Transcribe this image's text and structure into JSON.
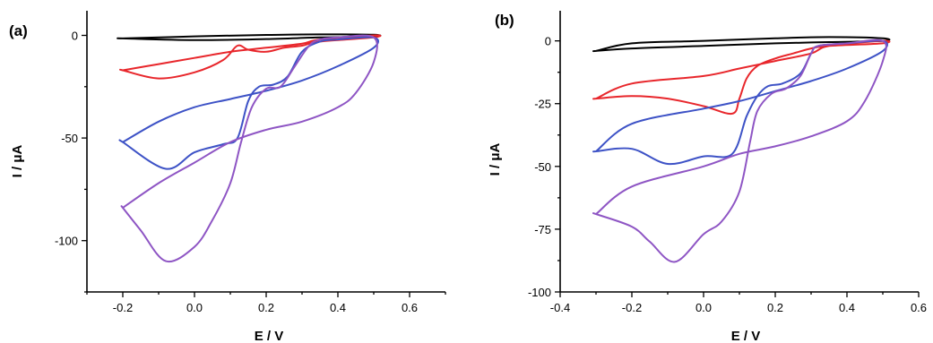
{
  "chart_data": [
    {
      "panel_label": "(a)",
      "type": "line",
      "xlabel": "E / V",
      "ylabel": "I / μA",
      "xlim": [
        -0.3,
        0.7
      ],
      "ylim": [
        -125,
        12
      ],
      "xticks": [
        -0.2,
        0.0,
        0.2,
        0.4,
        0.6
      ],
      "yticks": [
        0,
        -50,
        -100
      ],
      "grid": false,
      "legend": "none",
      "series": [
        {
          "color": "#000000",
          "x": [
            -0.2,
            0.0,
            0.2,
            0.35,
            0.5,
            0.5,
            0.35,
            0.2,
            0.0,
            -0.2
          ],
          "y": [
            -1.5,
            -0.5,
            0.2,
            0.5,
            0.3,
            -0.5,
            -1.0,
            -1.8,
            -2.3,
            -1.5
          ]
        },
        {
          "color": "#e8262b",
          "x": [
            -0.2,
            -0.1,
            0.0,
            0.1,
            0.2,
            0.3,
            0.35,
            0.5,
            0.5,
            0.35,
            0.3,
            0.25,
            0.2,
            0.15,
            0.12,
            0.08,
            0.0,
            -0.1,
            -0.2
          ],
          "y": [
            -17,
            -14,
            -11,
            -8,
            -6,
            -4,
            -2,
            0,
            -1,
            -3,
            -5,
            -6,
            -8,
            -7,
            -5,
            -12,
            -18,
            -21,
            -17
          ]
        },
        {
          "color": "#3d52c6",
          "x": [
            -0.2,
            -0.1,
            0.0,
            0.1,
            0.2,
            0.3,
            0.4,
            0.5,
            0.5,
            0.4,
            0.35,
            0.3,
            0.26,
            0.22,
            0.18,
            0.15,
            0.12,
            0.08,
            0.0,
            -0.08,
            -0.2
          ],
          "y": [
            -52,
            -42,
            -35,
            -31,
            -27,
            -22,
            -15,
            -6,
            -1,
            -2,
            -3,
            -8,
            -20,
            -24,
            -25,
            -32,
            -50,
            -53,
            -57,
            -65,
            -52
          ]
        },
        {
          "color": "#8e55c4",
          "x": [
            -0.2,
            -0.1,
            0.0,
            0.1,
            0.2,
            0.3,
            0.4,
            0.45,
            0.5,
            0.5,
            0.4,
            0.35,
            0.32,
            0.28,
            0.24,
            0.2,
            0.16,
            0.13,
            0.1,
            0.05,
            0.0,
            -0.08,
            -0.15,
            -0.2
          ],
          "y": [
            -84,
            -72,
            -62,
            -52,
            -46,
            -42,
            -35,
            -28,
            -13,
            -1,
            -1,
            -2,
            -5,
            -15,
            -25,
            -26,
            -35,
            -52,
            -72,
            -90,
            -103,
            -110,
            -95,
            -84
          ]
        }
      ]
    },
    {
      "panel_label": "(b)",
      "type": "line",
      "xlabel": "E / V",
      "ylabel": "I / μA",
      "xlim": [
        -0.4,
        0.6
      ],
      "ylim": [
        -100,
        12
      ],
      "xticks": [
        -0.4,
        -0.2,
        0.0,
        0.2,
        0.4,
        0.6
      ],
      "yticks": [
        0,
        -25,
        -50,
        -75,
        -100
      ],
      "grid": false,
      "legend": "none",
      "series": [
        {
          "color": "#000000",
          "x": [
            -0.3,
            -0.2,
            0.0,
            0.2,
            0.35,
            0.5,
            0.5,
            0.35,
            0.2,
            0.0,
            -0.2,
            -0.3
          ],
          "y": [
            -4,
            -1,
            0,
            1,
            1.5,
            1,
            0,
            -0.5,
            -1,
            -2,
            -3,
            -4
          ]
        },
        {
          "color": "#e8262b",
          "x": [
            -0.3,
            -0.2,
            0.0,
            0.1,
            0.2,
            0.3,
            0.35,
            0.5,
            0.5,
            0.35,
            0.3,
            0.25,
            0.2,
            0.15,
            0.12,
            0.1,
            0.08,
            0.0,
            -0.1,
            -0.2,
            -0.3
          ],
          "y": [
            -23,
            -17,
            -14,
            -11,
            -8,
            -5,
            -2,
            0,
            -1,
            -2,
            -3,
            -5,
            -7,
            -10,
            -15,
            -23,
            -29,
            -26,
            -23,
            -22,
            -23
          ]
        },
        {
          "color": "#3d52c6",
          "x": [
            -0.3,
            -0.2,
            0.0,
            0.1,
            0.2,
            0.3,
            0.4,
            0.5,
            0.5,
            0.4,
            0.32,
            0.3,
            0.27,
            0.22,
            0.18,
            0.15,
            0.12,
            0.08,
            0.0,
            -0.1,
            -0.2,
            -0.3
          ],
          "y": [
            -44,
            -33,
            -27,
            -24,
            -20,
            -16,
            -11,
            -4,
            0,
            -1,
            -2,
            -5,
            -13,
            -17,
            -18,
            -22,
            -30,
            -45,
            -46,
            -49,
            -43,
            -44
          ]
        },
        {
          "color": "#8e55c4",
          "x": [
            -0.3,
            -0.2,
            0.0,
            0.1,
            0.2,
            0.3,
            0.4,
            0.45,
            0.5,
            0.5,
            0.4,
            0.32,
            0.3,
            0.27,
            0.23,
            0.19,
            0.15,
            0.13,
            0.1,
            0.05,
            0.0,
            -0.08,
            -0.15,
            -0.2,
            -0.3
          ],
          "y": [
            -69,
            -58,
            -50,
            -45,
            -42,
            -38,
            -32,
            -24,
            -8,
            0,
            -1,
            -2,
            -5,
            -14,
            -19,
            -21,
            -28,
            -40,
            -60,
            -72,
            -77,
            -88,
            -80,
            -74,
            -69
          ]
        }
      ]
    }
  ]
}
